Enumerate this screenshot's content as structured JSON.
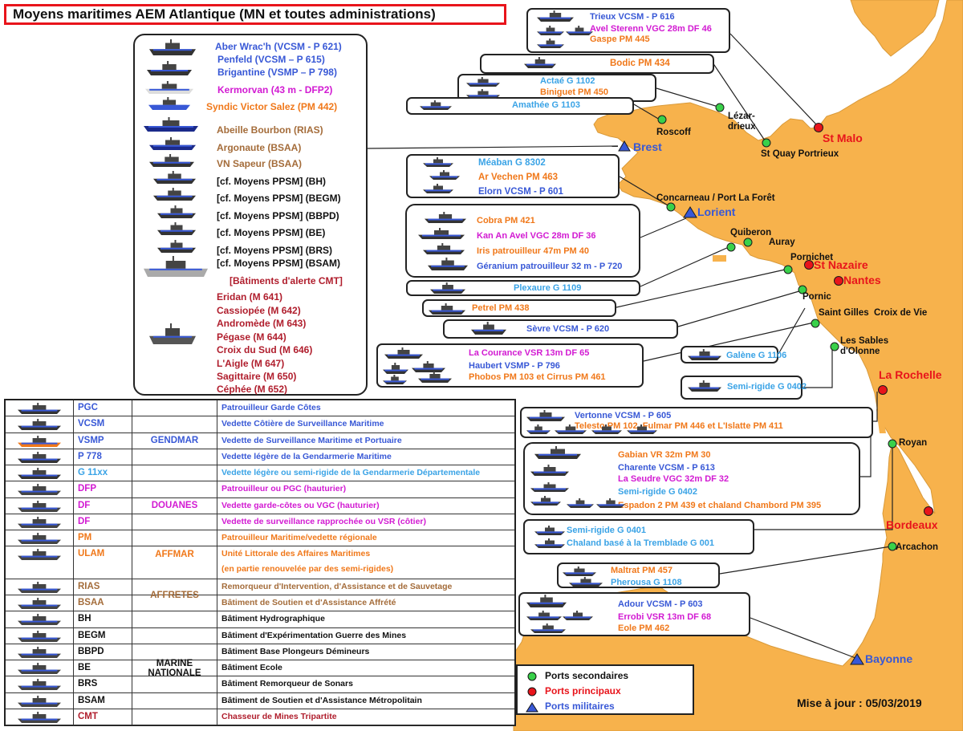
{
  "title": "Moyens maritimes AEM Atlantique (MN et toutes administrations)",
  "update": "Mise à jour : 05/03/2019",
  "colors": {
    "sea": "#ffffff",
    "land": "#f7b24c",
    "blue": "#3858d6",
    "lightblue": "#3aa3e6",
    "magenta": "#d21ad2",
    "orange": "#f0781a",
    "brown": "#a46c3a",
    "red": "#b01e2d",
    "black": "#111111",
    "port_sec": "#39d14a",
    "port_main": "#e8141b"
  },
  "brest_panel": {
    "lines": [
      {
        "text": "Aber Wrac'h (VCSM - P 621)",
        "color": "blue"
      },
      {
        "text": "Penfeld       (VCSM – P 615)",
        "color": "blue"
      },
      {
        "text": "Brigantine   (VSMP – P 798)",
        "color": "blue"
      },
      {
        "text": "Kermorvan   (43 m - DFP2)",
        "color": "magenta"
      },
      {
        "text": "Syndic Victor Salez (PM 442)",
        "color": "orange"
      },
      {
        "text": "Abeille Bourbon          (RIAS)",
        "color": "brown"
      },
      {
        "text": "Argonaute                   (BSAA)",
        "color": "brown"
      },
      {
        "text": "VN Sapeur                   (BSAA)",
        "color": "brown"
      },
      {
        "text": "[cf. Moyens PPSM]       (BH)",
        "color": "black"
      },
      {
        "text": "[cf. Moyens PPSM]  (BEGM)",
        "color": "black"
      },
      {
        "text": "[cf. Moyens PPSM]  (BBPD)",
        "color": "black"
      },
      {
        "text": "[cf. Moyens PPSM]        (BE)",
        "color": "black"
      },
      {
        "text": "[cf. Moyens PPSM]      (BRS)",
        "color": "black"
      },
      {
        "text": "[cf. Moyens PPSM]  (BSAM)",
        "color": "black"
      },
      {
        "text": "[Bâtiments d'alerte CMT]",
        "color": "red"
      },
      {
        "text": "Eridan                          (M 641)",
        "color": "red"
      },
      {
        "text": "Cassiopée                     (M 642)",
        "color": "red"
      },
      {
        "text": "Andromède                  (M 643)",
        "color": "red"
      },
      {
        "text": "Pégase                         (M 644)",
        "color": "red"
      },
      {
        "text": "Croix du Sud                (M 646)",
        "color": "red"
      },
      {
        "text": "L'Aigle                          (M 647)",
        "color": "red"
      },
      {
        "text": "Sagittaire                     (M 650)",
        "color": "red"
      },
      {
        "text": "Céphée                         (M 652)",
        "color": "red"
      }
    ]
  },
  "boxes": [
    {
      "id": "stmalo",
      "lines": [
        {
          "text": "Trieux             VCSM - P 616",
          "color": "blue"
        },
        {
          "text": "Avel Sterenn VGC 28m DF 46",
          "color": "magenta"
        },
        {
          "text": "Gaspe                     PM 445",
          "color": "orange"
        }
      ]
    },
    {
      "id": "bodic",
      "lines": [
        {
          "text": "Bodic           PM 434",
          "color": "orange"
        }
      ]
    },
    {
      "id": "actae",
      "lines": [
        {
          "text": "Actaé              G 1102",
          "color": "lightblue"
        },
        {
          "text": "Biniguet      PM 450",
          "color": "orange"
        }
      ]
    },
    {
      "id": "amathee",
      "lines": [
        {
          "text": "Amathée           G 1103",
          "color": "lightblue"
        }
      ]
    },
    {
      "id": "meaban",
      "lines": [
        {
          "text": "Méaban             G 8302",
          "color": "lightblue"
        },
        {
          "text": "Ar Vechen            PM 463",
          "color": "orange"
        },
        {
          "text": "Elorn          VCSM - P 601",
          "color": "blue"
        }
      ]
    },
    {
      "id": "cobra",
      "lines": [
        {
          "text": "Cobra                 PM 421",
          "color": "orange"
        },
        {
          "text": "Kan An Avel    VGC 28m   DF 36",
          "color": "magenta"
        },
        {
          "text": "Iris patrouilleur 47m PM 40",
          "color": "orange"
        },
        {
          "text": "Géranium    patrouilleur 32 m - P 720",
          "color": "blue"
        }
      ]
    },
    {
      "id": "plexaure",
      "lines": [
        {
          "text": "Plexaure                  G 1109",
          "color": "lightblue"
        }
      ]
    },
    {
      "id": "petrel",
      "lines": [
        {
          "text": "Petrel                  PM 438",
          "color": "orange"
        }
      ]
    },
    {
      "id": "sevre",
      "lines": [
        {
          "text": "Sèvre            VCSM - P 620",
          "color": "blue"
        }
      ]
    },
    {
      "id": "courance",
      "lines": [
        {
          "text": "La Courance   VSR 13m   DF 65",
          "color": "magenta"
        },
        {
          "text": "Haubert     VSMP - P 796",
          "color": "blue"
        },
        {
          "text": "Phobos   PM 103 et Cirrus PM 461",
          "color": "orange"
        }
      ]
    },
    {
      "id": "galene",
      "lines": [
        {
          "text": "Galène G 1106",
          "color": "lightblue"
        }
      ]
    },
    {
      "id": "semirigide1",
      "lines": [
        {
          "text": "Semi-rigide  G 0402",
          "color": "lightblue"
        }
      ]
    },
    {
      "id": "vertonne",
      "lines": [
        {
          "text": "Vertonne         VCSM - P 605",
          "color": "blue"
        },
        {
          "text": "Telesto  PM 102, Fulmar PM 446 et L'Islatte PM 411",
          "color": "orange"
        }
      ]
    },
    {
      "id": "gabian",
      "lines": [
        {
          "text": "Gabian VR  32m PM 30",
          "color": "orange"
        },
        {
          "text": "Charente       VCSM - P 613",
          "color": "blue"
        },
        {
          "text": "La Seudre   VGC 32m   DF 32",
          "color": "magenta"
        },
        {
          "text": "Semi-rigide             G 0402",
          "color": "lightblue"
        },
        {
          "text": "Espadon 2   PM 439 et chaland  Chambord PM 395",
          "color": "orange"
        }
      ]
    },
    {
      "id": "semirigide2",
      "lines": [
        {
          "text": "Semi-rigide                  G 0401",
          "color": "lightblue"
        },
        {
          "text": "Chaland basé à la Tremblade G 001",
          "color": "lightblue"
        }
      ]
    },
    {
      "id": "maltrat",
      "lines": [
        {
          "text": "Maltrat         PM 457",
          "color": "orange"
        },
        {
          "text": "Pherousa          G 1108",
          "color": "lightblue"
        }
      ]
    },
    {
      "id": "adour",
      "lines": [
        {
          "text": "Adour          VCSM - P 603",
          "color": "blue"
        },
        {
          "text": "Errobi   VSR 13m        DF 68",
          "color": "magenta"
        },
        {
          "text": "Eole                          PM 462",
          "color": "orange"
        }
      ]
    }
  ],
  "ports": [
    {
      "name": "Roscoff",
      "type": "secondary"
    },
    {
      "name": "Lézar-\ndrieux",
      "type": "secondary"
    },
    {
      "name": "St Quay Portrieux",
      "type": "secondary"
    },
    {
      "name": "St Malo",
      "type": "main"
    },
    {
      "name": "Brest",
      "type": "military"
    },
    {
      "name": "Concarneau / Port La Forêt",
      "type": "secondary"
    },
    {
      "name": "Lorient",
      "type": "military"
    },
    {
      "name": "Quiberon",
      "type": "secondary"
    },
    {
      "name": "Auray",
      "type": "secondary"
    },
    {
      "name": "Pornichet",
      "type": "secondary"
    },
    {
      "name": "St Nazaire",
      "type": "main"
    },
    {
      "name": "Nantes",
      "type": "main"
    },
    {
      "name": "Pornic",
      "type": "secondary"
    },
    {
      "name": "Saint Gilles  Croix de Vie",
      "type": "secondary"
    },
    {
      "name": "Les Sables\nd'Olonne",
      "type": "secondary"
    },
    {
      "name": "La Rochelle",
      "type": "main"
    },
    {
      "name": "Royan",
      "type": "secondary"
    },
    {
      "name": "Bordeaux",
      "type": "main"
    },
    {
      "name": "Arcachon",
      "type": "secondary"
    },
    {
      "name": "Bayonne",
      "type": "military"
    }
  ],
  "legend": {
    "rows": [
      {
        "code": "PGC",
        "code_color": "blue",
        "desc": "Patrouilleur Garde Côtes",
        "desc_color": "blue"
      },
      {
        "code": "VCSM",
        "code_color": "blue",
        "desc": "Vedette Côtière de Surveillance Maritime",
        "desc_color": "blue"
      },
      {
        "code": "VSMP",
        "code_color": "blue",
        "desc": "Vedette de Surveillance Maritime et Portuaire",
        "desc_color": "blue"
      },
      {
        "code": "P 778",
        "code_color": "blue",
        "desc": "Vedette légère de la Gendarmerie Maritime",
        "desc_color": "blue"
      },
      {
        "code": "G 11xx",
        "code_color": "lightblue",
        "desc": "Vedette légère  ou semi-rigide de la Gendarmerie Départementale",
        "desc_color": "lightblue"
      },
      {
        "code": "DFP",
        "code_color": "magenta",
        "desc": "Patrouilleur ou PGC (hauturier)",
        "desc_color": "magenta"
      },
      {
        "code": "DF",
        "code_color": "magenta",
        "desc": "Vedette garde-côtes  ou VGC (hauturier)",
        "desc_color": "magenta"
      },
      {
        "code": "DF",
        "code_color": "magenta",
        "desc": "Vedette de surveillance rapprochée ou VSR (côtier)",
        "desc_color": "magenta"
      },
      {
        "code": "PM",
        "code_color": "orange",
        "desc": "Patrouilleur Maritime/vedette régionale",
        "desc_color": "orange"
      },
      {
        "code": "ULAM",
        "code_color": "orange",
        "desc": "Unité Littorale des Affaires Maritimes",
        "desc_color": "orange",
        "desc2": "(en partie renouvelée par des semi-rigides)"
      },
      {
        "code": "RIAS",
        "code_color": "brown",
        "desc": "Remorqueur d'Intervention, d'Assistance et de Sauvetage",
        "desc_color": "brown"
      },
      {
        "code": "BSAA",
        "code_color": "brown",
        "desc": "Bâtiment de Soutien et d'Assistance Affrété",
        "desc_color": "brown"
      },
      {
        "code": "BH",
        "code_color": "black",
        "desc": "Bâtiment Hydrographique",
        "desc_color": "black"
      },
      {
        "code": "BEGM",
        "code_color": "black",
        "desc": "Bâtiment d'Expérimentation Guerre des Mines",
        "desc_color": "black"
      },
      {
        "code": "BBPD",
        "code_color": "black",
        "desc": "Bâtiment Base Plongeurs Démineurs",
        "desc_color": "black"
      },
      {
        "code": "BE",
        "code_color": "black",
        "desc": "Bâtiment Ecole",
        "desc_color": "black"
      },
      {
        "code": "BRS",
        "code_color": "black",
        "desc": "Bâtiment Remorqueur de Sonars",
        "desc_color": "black"
      },
      {
        "code": "BSAM",
        "code_color": "black",
        "desc": "Bâtiment de Soutien et d'Assistance Métropolitain",
        "desc_color": "black"
      },
      {
        "code": "CMT",
        "code_color": "red",
        "desc": "Chasseur de Mines Tripartite",
        "desc_color": "red"
      }
    ],
    "groups": [
      {
        "label": "GENDMAR",
        "color": "blue"
      },
      {
        "label": "DOUANES",
        "color": "magenta"
      },
      {
        "label": "AFFMAR",
        "color": "orange"
      },
      {
        "label": "AFFRETES",
        "color": "brown"
      },
      {
        "label": "MARINE\nNATIONALE",
        "color": "black"
      }
    ]
  },
  "port_legend": {
    "secondary": "Ports secondaires",
    "main": "Ports principaux",
    "military": "Ports militaires"
  }
}
